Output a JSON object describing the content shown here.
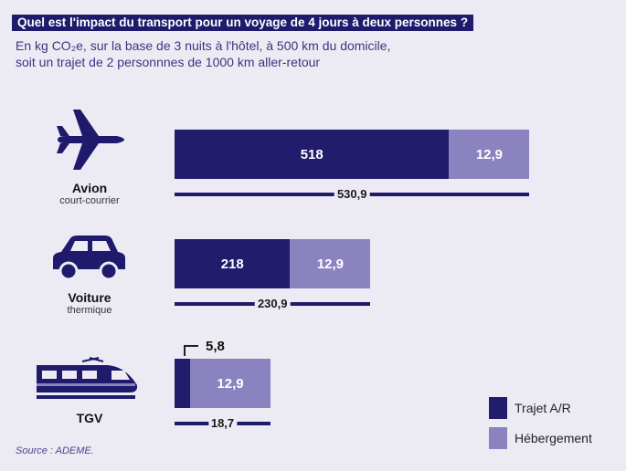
{
  "chart_data": {
    "type": "bar",
    "stacked": true,
    "orientation": "horizontal",
    "title": "Quel est l'impact du transport pour un voyage de 4 jours à deux personnes ?",
    "subtitle_lines": [
      "En kg CO₂e, sur la base de 3 nuits à l'hôtel, à 500 km du domicile,",
      "soit un trajet de 2 personnnes de 1000 km aller-retour"
    ],
    "categories": [
      {
        "name": "Avion",
        "detail": "court-courrier",
        "icon": "plane-icon"
      },
      {
        "name": "Voiture",
        "detail": "thermique",
        "icon": "car-icon"
      },
      {
        "name": "TGV",
        "detail": "",
        "icon": "train-icon"
      }
    ],
    "series": [
      {
        "name": "Trajet A/R",
        "color": "#221c6c",
        "values": [
          518,
          218,
          5.8
        ],
        "labels": [
          "518",
          "218",
          "5,8"
        ]
      },
      {
        "name": "Hébergement",
        "color": "#8a83bf",
        "values": [
          12.9,
          12.9,
          12.9
        ],
        "labels": [
          "12,9",
          "12,9",
          "12,9"
        ]
      }
    ],
    "totals": [
      "530,9",
      "230,9",
      "18,7"
    ],
    "legend_position": "bottom-right",
    "source": "Source : ADEME."
  }
}
